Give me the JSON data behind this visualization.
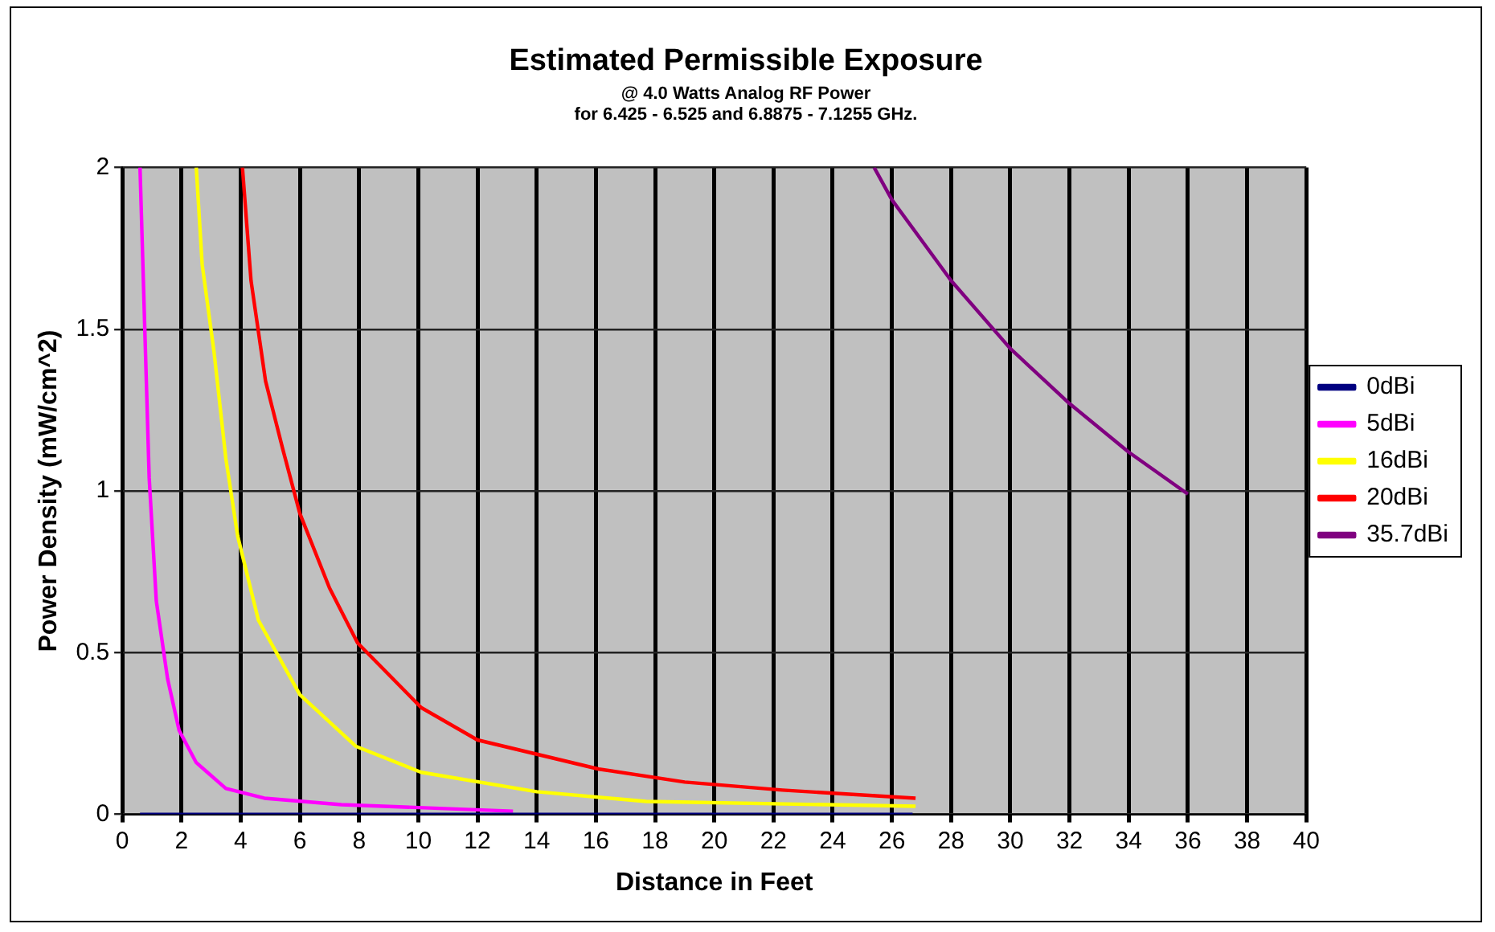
{
  "chart_data": {
    "type": "line",
    "title": "Estimated Permissible Exposure",
    "subtitle": "@ 4.0 Watts Analog RF Power\nfor 6.425 - 6.525 and 6.8875 - 7.1255 GHz.",
    "xlabel": "Distance in Feet",
    "ylabel": "Power Density (mW/cm^2)",
    "xlim": [
      0,
      40
    ],
    "xticks": [
      0,
      2,
      4,
      6,
      8,
      10,
      12,
      14,
      16,
      18,
      20,
      22,
      24,
      26,
      28,
      30,
      32,
      34,
      36,
      38,
      40
    ],
    "ylim": [
      0,
      2
    ],
    "yticks": [
      0,
      0.5,
      1,
      1.5,
      2
    ],
    "grid": true,
    "legend": "right",
    "series": [
      {
        "name": "0dBi",
        "color": "#000080",
        "x": [
          0.6,
          26.7
        ],
        "values": [
          0,
          0
        ]
      },
      {
        "name": "5dBi",
        "color": "#ff00ff",
        "x": [
          0.6,
          0.91,
          1.15,
          1.53,
          1.92,
          2.5,
          3.5,
          4.8,
          7.4,
          13.2
        ],
        "values": [
          2,
          1.04,
          0.66,
          0.42,
          0.26,
          0.16,
          0.08,
          0.05,
          0.03,
          0.01
        ]
      },
      {
        "name": "16dBi",
        "color": "#ffff00",
        "x": [
          2.5,
          2.7,
          3.1,
          3.5,
          3.9,
          4.6,
          6.0,
          7.9,
          10.1,
          14,
          17.7,
          26.8
        ],
        "values": [
          2,
          1.7,
          1.43,
          1.1,
          0.86,
          0.6,
          0.37,
          0.21,
          0.13,
          0.07,
          0.04,
          0.025
        ]
      },
      {
        "name": "20dBi",
        "color": "#ff0000",
        "x": [
          4.06,
          4.35,
          4.84,
          5.42,
          6.0,
          7.0,
          7.95,
          10.1,
          12.0,
          16.1,
          19,
          22.3,
          26.8
        ],
        "values": [
          2,
          1.65,
          1.34,
          1.13,
          0.93,
          0.7,
          0.53,
          0.33,
          0.23,
          0.14,
          0.1,
          0.075,
          0.05
        ]
      },
      {
        "name": "35.7dBi",
        "color": "#800080",
        "x": [
          25.4,
          26,
          28,
          30,
          32,
          34,
          36
        ],
        "values": [
          2,
          1.9,
          1.65,
          1.44,
          1.27,
          1.12,
          0.99
        ]
      }
    ]
  }
}
